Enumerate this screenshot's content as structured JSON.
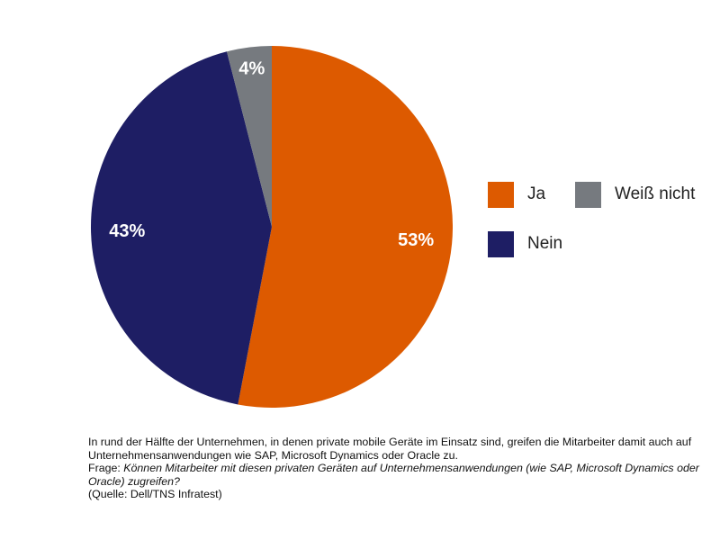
{
  "chart_data": {
    "type": "pie",
    "slices": [
      {
        "name": "Ja",
        "value": 53,
        "label": "53%",
        "color": "#dd5a00"
      },
      {
        "name": "Nein",
        "value": 43,
        "label": "43%",
        "color": "#1e1e64"
      },
      {
        "name": "Weiß nicht",
        "value": 4,
        "label": "4%",
        "color": "#767a7f"
      }
    ],
    "legend": {
      "placement": "right",
      "items": [
        {
          "name": "Ja",
          "color": "#dd5a00"
        },
        {
          "name": "Weiß nicht",
          "color": "#767a7f"
        },
        {
          "name": "Nein",
          "color": "#1e1e64"
        }
      ]
    }
  },
  "caption": {
    "text": "In rund der Hälfte der Unternehmen, in denen private mobile Geräte im Einsatz sind, greifen die Mitarbeiter damit auch auf Unternehmensanwendungen wie SAP, Microsoft Dynamics oder Oracle zu.",
    "question_prefix": "Frage: ",
    "question": "Können Mitarbeiter mit diesen privaten Geräten auf Unternehmensanwendungen (wie SAP, Microsoft Dynamics oder Oracle) zugreifen?",
    "source": "(Quelle: Dell/TNS Infratest)"
  }
}
